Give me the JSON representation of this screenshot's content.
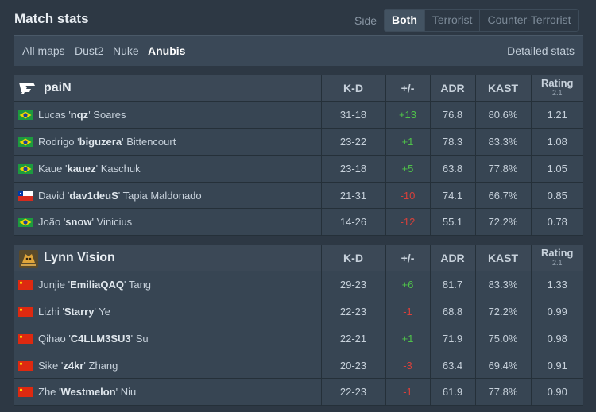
{
  "header": {
    "title": "Match stats",
    "side_label": "Side",
    "side_tabs": [
      "Both",
      "Terrorist",
      "Counter-Terrorist"
    ],
    "active_side": "Both"
  },
  "maps": {
    "items": [
      "All maps",
      "Dust2",
      "Nuke",
      "Anubis"
    ],
    "active": "Anubis",
    "detailed_link": "Detailed stats"
  },
  "columns": {
    "kd": "K-D",
    "pm": "+/-",
    "adr": "ADR",
    "kast": "KAST",
    "rating": "Rating",
    "rating_version": "2.1"
  },
  "teams": [
    {
      "name": "paiN",
      "logo_icon": "pain-logo-icon",
      "players": [
        {
          "flag": "brazil",
          "first": "Lucas",
          "nick": "nqz",
          "last": "Soares",
          "kd": "31-18",
          "pm": "+13",
          "adr": "76.8",
          "kast": "80.6%",
          "rating": "1.21"
        },
        {
          "flag": "brazil",
          "first": "Rodrigo",
          "nick": "biguzera",
          "last": "Bittencourt",
          "kd": "23-22",
          "pm": "+1",
          "adr": "78.3",
          "kast": "83.3%",
          "rating": "1.08"
        },
        {
          "flag": "brazil",
          "first": "Kaue",
          "nick": "kauez",
          "last": "Kaschuk",
          "kd": "23-18",
          "pm": "+5",
          "adr": "63.8",
          "kast": "77.8%",
          "rating": "1.05"
        },
        {
          "flag": "chile",
          "first": "David",
          "nick": "dav1deuS",
          "last": "Tapia Maldonado",
          "kd": "21-31",
          "pm": "-10",
          "adr": "74.1",
          "kast": "66.7%",
          "rating": "0.85"
        },
        {
          "flag": "brazil",
          "first": "João",
          "nick": "snow",
          "last": "Vinicius",
          "kd": "14-26",
          "pm": "-12",
          "adr": "55.1",
          "kast": "72.2%",
          "rating": "0.78"
        }
      ]
    },
    {
      "name": "Lynn Vision",
      "logo_icon": "lynn-vision-logo-icon",
      "players": [
        {
          "flag": "china",
          "first": "Junjie",
          "nick": "EmiliaQAQ",
          "last": "Tang",
          "kd": "29-23",
          "pm": "+6",
          "adr": "81.7",
          "kast": "83.3%",
          "rating": "1.33"
        },
        {
          "flag": "china",
          "first": "Lizhi",
          "nick": "Starry",
          "last": "Ye",
          "kd": "22-23",
          "pm": "-1",
          "adr": "68.8",
          "kast": "72.2%",
          "rating": "0.99"
        },
        {
          "flag": "china",
          "first": "Qihao",
          "nick": "C4LLM3SU3",
          "last": "Su",
          "kd": "22-21",
          "pm": "+1",
          "adr": "71.9",
          "kast": "75.0%",
          "rating": "0.98"
        },
        {
          "flag": "china",
          "first": "Sike",
          "nick": "z4kr",
          "last": "Zhang",
          "kd": "20-23",
          "pm": "-3",
          "adr": "63.4",
          "kast": "69.4%",
          "rating": "0.91"
        },
        {
          "flag": "china",
          "first": "Zhe",
          "nick": "Westmelon",
          "last": "Niu",
          "kd": "22-23",
          "pm": "-1",
          "adr": "61.9",
          "kast": "77.8%",
          "rating": "0.90"
        }
      ]
    }
  ],
  "colors": {
    "background": "#2d3844",
    "row": "#374553",
    "header_row": "#3b4856",
    "positive": "#4fc24a",
    "negative": "#d9403a"
  }
}
